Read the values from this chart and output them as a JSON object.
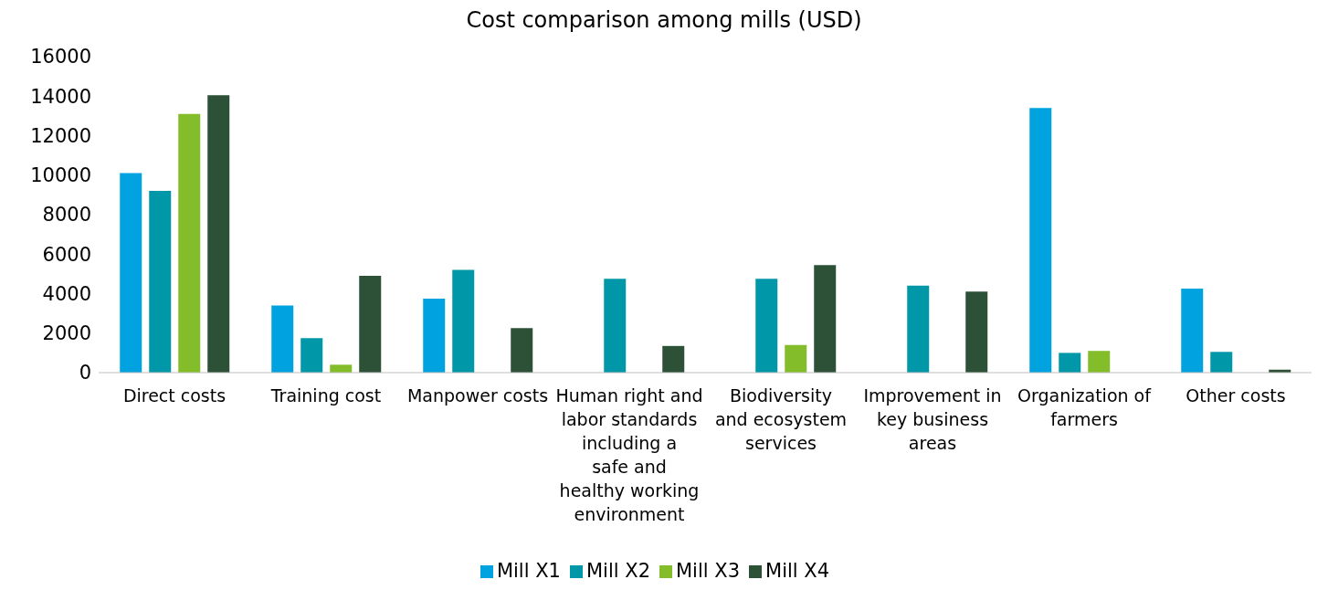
{
  "chart_data": {
    "type": "bar",
    "title": "Cost comparison among mills (USD)",
    "categories": [
      "Direct costs",
      "Training cost",
      "Manpower costs",
      "Human right and labor standards including a safe and healthy working environment",
      "Biodiversity and ecosystem services",
      "Improvement in key business areas",
      "Organization of farmers",
      "Other costs"
    ],
    "series": [
      {
        "name": "Mill X1",
        "color": "#00a3e0",
        "values": [
          10100,
          3400,
          3750,
          null,
          null,
          null,
          13400,
          4250
        ]
      },
      {
        "name": "Mill X2",
        "color": "#0097a9",
        "values": [
          9200,
          1750,
          5200,
          4750,
          4750,
          4400,
          1000,
          1050
        ]
      },
      {
        "name": "Mill X3",
        "color": "#84bd2a",
        "values": [
          13100,
          400,
          null,
          null,
          1400,
          null,
          1100,
          null
        ]
      },
      {
        "name": "Mill X4",
        "color": "#2c5136",
        "values": [
          14050,
          4900,
          2250,
          1350,
          5450,
          4100,
          null,
          150
        ]
      }
    ],
    "ylim": [
      0,
      16000
    ],
    "yticks": [
      0,
      2000,
      4000,
      6000,
      8000,
      10000,
      12000,
      14000,
      16000
    ],
    "grid": false,
    "legend": "bottom"
  }
}
